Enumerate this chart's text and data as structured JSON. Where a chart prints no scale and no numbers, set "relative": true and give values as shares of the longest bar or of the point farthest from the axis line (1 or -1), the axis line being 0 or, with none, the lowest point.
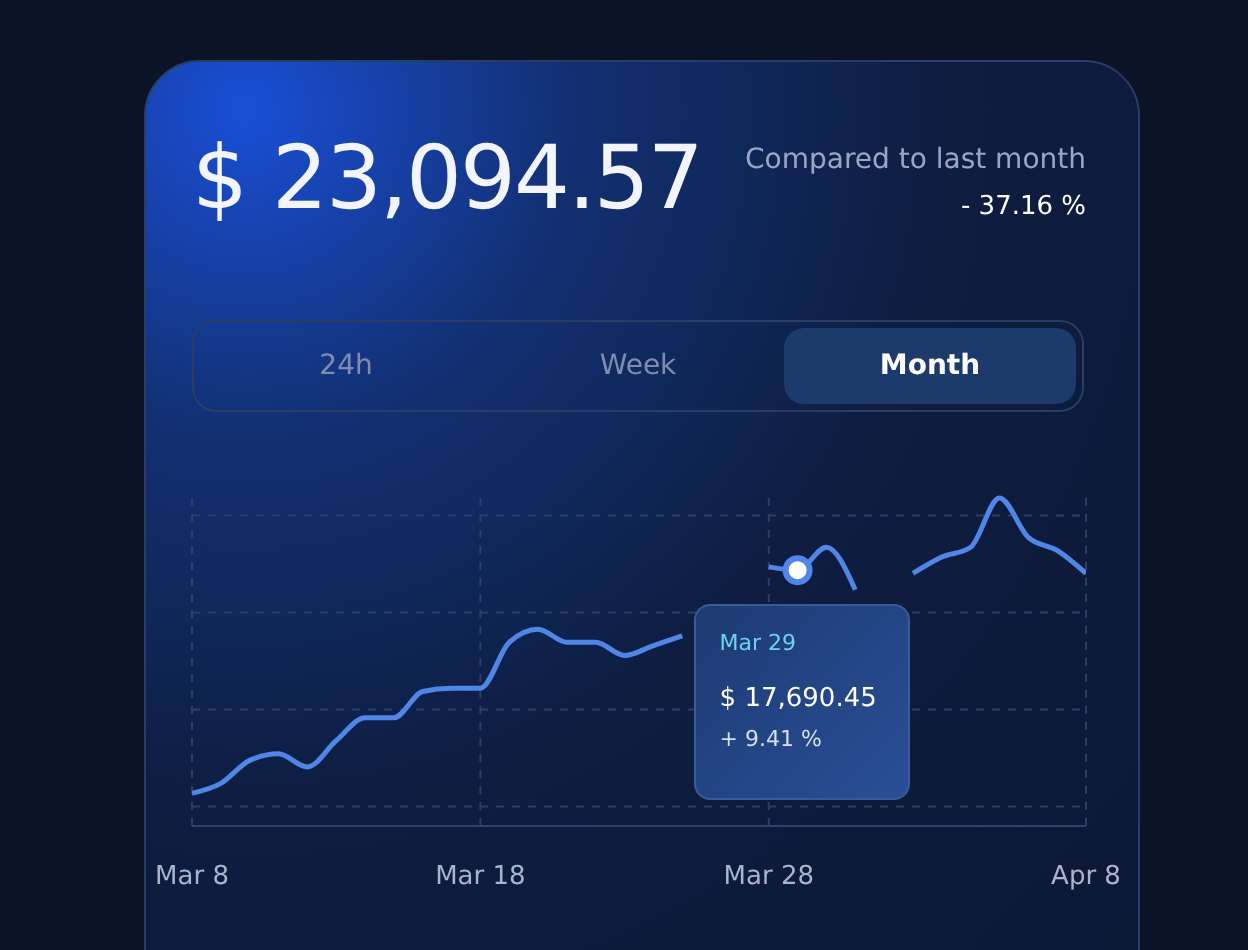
{
  "chart_data": {
    "type": "line",
    "title": "$ 23,094.57",
    "subtitle": "Compared to last month",
    "annotations": [
      "- 37.16 %",
      "24h",
      "Week",
      "Month",
      {
        "text": "Mar 29",
        "x": "--03-29",
        "y": 0.78
      },
      "$ 17,690.45",
      "+ 9.41 %"
    ],
    "relative": true,
    "x": [
      "--03-08",
      "--03-09",
      "--03-10",
      "--03-11",
      "--03-12",
      "--03-13",
      "--03-14",
      "--03-15",
      "--03-16",
      "--03-17",
      "--03-18",
      "--03-19",
      "--03-20",
      "--03-21",
      "--03-22",
      "--03-23",
      "--03-24",
      "--03-25",
      "--03-26",
      "--03-27",
      "--03-28",
      "--03-29",
      "--03-30",
      "--03-31",
      "--04-01",
      "--04-02",
      "--04-03",
      "--04-04",
      "--04-05",
      "--04-06",
      "--04-07",
      "--04-08"
    ],
    "series": [
      {
        "color": "#4f86e8",
        "values": [
          0.1,
          0.13,
          0.2,
          0.22,
          0.18,
          0.26,
          0.33,
          0.33,
          0.41,
          0.42,
          0.42,
          0.56,
          0.6,
          0.56,
          0.56,
          0.52,
          0.55,
          0.58,
          null,
          null,
          0.79,
          0.78,
          0.85,
          0.72,
          null,
          0.77,
          0.82,
          0.85,
          1.0,
          0.88,
          0.84,
          0.77
        ]
      }
    ],
    "xlim": [
      "--03-08",
      "--04-08"
    ],
    "xticks": [
      {
        "value": "--03-08",
        "label": "Mar 8"
      },
      {
        "value": "--03-18",
        "label": "Mar 18"
      },
      {
        "value": "--03-28",
        "label": "Mar 28"
      },
      {
        "value": "--04-08",
        "label": "Apr 8"
      }
    ],
    "grid": true,
    "line_style": "solid",
    "marker": "none"
  }
}
